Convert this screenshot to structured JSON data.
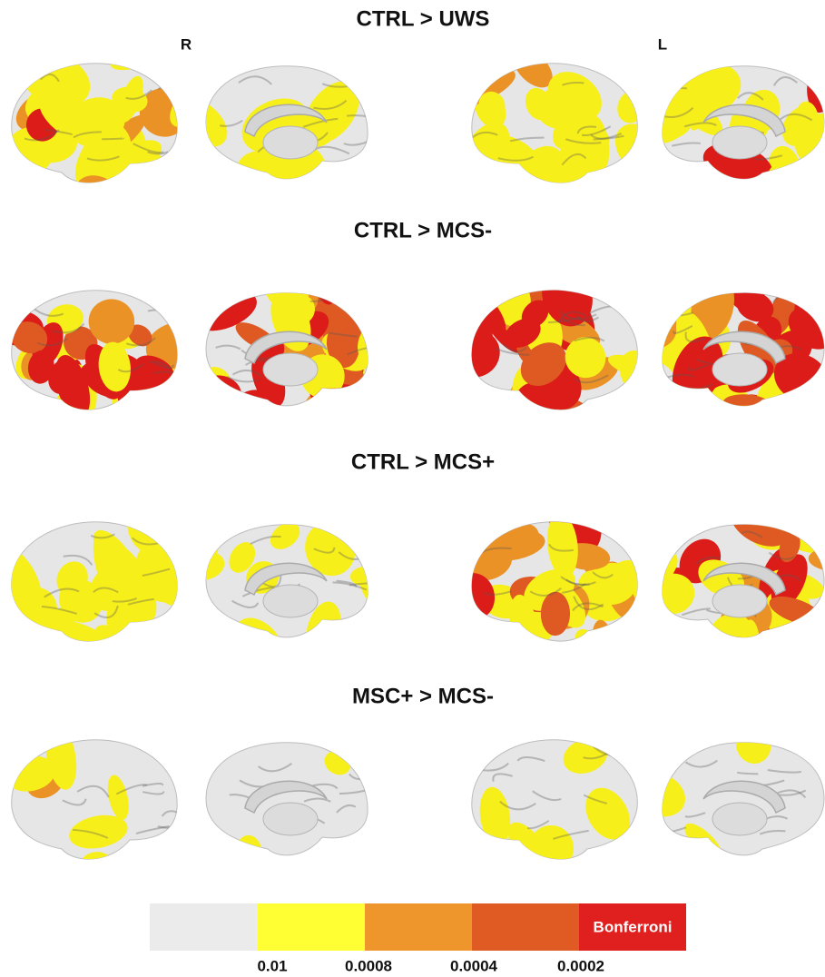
{
  "panels": [
    {
      "title": "CTRL > UWS"
    },
    {
      "title": "CTRL > MCS-"
    },
    {
      "title": "CTRL > MCS+"
    },
    {
      "title": "MSC+ > MCS-"
    }
  ],
  "hemispheres": {
    "right": "R",
    "left": "L"
  },
  "colorbar": {
    "thresholds": [
      "0.01",
      "0.0008",
      "0.0004",
      "0.0002"
    ],
    "top_label": "Bonferroni"
  }
}
